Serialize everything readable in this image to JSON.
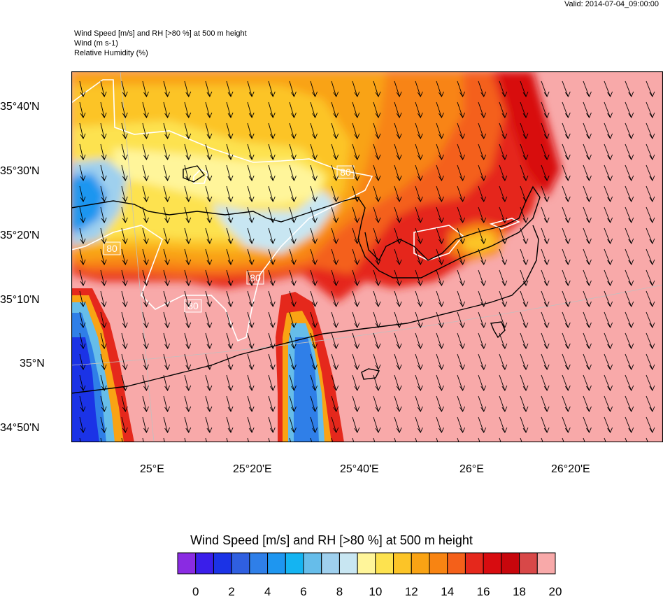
{
  "valid_label": "Valid: 2014-07-04_09:00:00",
  "header": {
    "line1": "Wind Speed [m/s] and RH [>80 %] at 500 m height",
    "line2": "Wind   (m s-1)",
    "line3": "Relative Humidity   (%)"
  },
  "lat_labels": [
    "35°40'N",
    "35°30'N",
    "35°20'N",
    "35°10'N",
    "35°N",
    "34°50'N"
  ],
  "lon_labels": [
    "25°E",
    "25°20'E",
    "25°40'E",
    "26°E",
    "26°20'E"
  ],
  "contour_labels": [
    "80",
    "80",
    "80",
    "80"
  ],
  "colorbar": {
    "title": "Wind Speed [m/s] and RH [>80 %] at 500 m height",
    "tick_labels": [
      "0",
      "2",
      "4",
      "6",
      "8",
      "10",
      "12",
      "14",
      "16",
      "18",
      "20"
    ],
    "colors": [
      "#8a2be2",
      "#3a1eea",
      "#1b33e6",
      "#2f5fe0",
      "#2f7fe8",
      "#1e96f0",
      "#14b4f2",
      "#66bdea",
      "#9fd0ee",
      "#c8e6f2",
      "#fff59a",
      "#fde24f",
      "#fcc427",
      "#f9a314",
      "#f88412",
      "#f4601a",
      "#e5281c",
      "#d80c10",
      "#c7060c",
      "#d84848",
      "#f8a9a9"
    ]
  },
  "palette": {
    "rh_pink": "#f8a9a9",
    "land_coast": "#000000",
    "contour": "#ffffff",
    "arrow": "#000000"
  }
}
